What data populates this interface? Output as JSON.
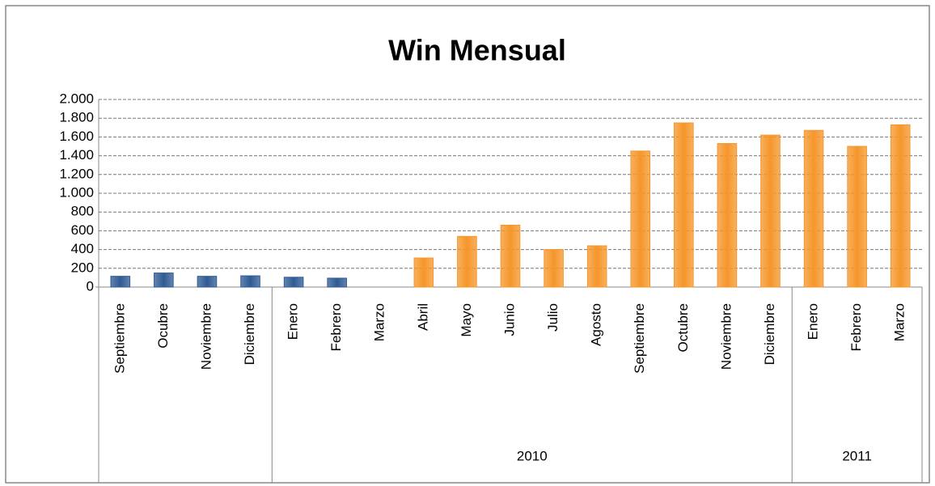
{
  "chart_data": {
    "type": "bar",
    "title": "Win Mensual",
    "categories": [
      "Septiembre",
      "Ocubre",
      "Noviembre",
      "Diciembre",
      "Enero",
      "Febrero",
      "Marzo",
      "Abril",
      "Mayo",
      "Junio",
      "Julio",
      "Agosto",
      "Septiembre",
      "Octubre",
      "Noviembre",
      "Diciembre",
      "Enero",
      "Febrero",
      "Marzo"
    ],
    "values": [
      115,
      150,
      115,
      120,
      105,
      95,
      0,
      310,
      540,
      660,
      400,
      440,
      1450,
      1750,
      1530,
      1620,
      1670,
      1500,
      1730
    ],
    "colors": [
      "#2f5b93",
      "#2f5b93",
      "#2f5b93",
      "#2f5b93",
      "#2f5b93",
      "#2f5b93",
      "#f5962a",
      "#f5962a",
      "#f5962a",
      "#f5962a",
      "#f5962a",
      "#f5962a",
      "#f5962a",
      "#f5962a",
      "#f5962a",
      "#f5962a",
      "#f5962a",
      "#f5962a",
      "#f5962a"
    ],
    "group_labels": [
      null,
      "2010",
      "2011"
    ],
    "group_sizes": [
      4,
      12,
      3
    ],
    "ylim": [
      0,
      2000
    ],
    "yticks": [
      0,
      200,
      400,
      600,
      800,
      {
        "value": 1000,
        "label": "1.000"
      },
      {
        "value": 1200,
        "label": "1.200"
      },
      {
        "value": 1400,
        "label": "1.400"
      },
      {
        "value": 1600,
        "label": "1.600"
      },
      {
        "value": 1800,
        "label": "1.800"
      },
      {
        "value": 2000,
        "label": "2.000"
      }
    ],
    "grid": true
  }
}
